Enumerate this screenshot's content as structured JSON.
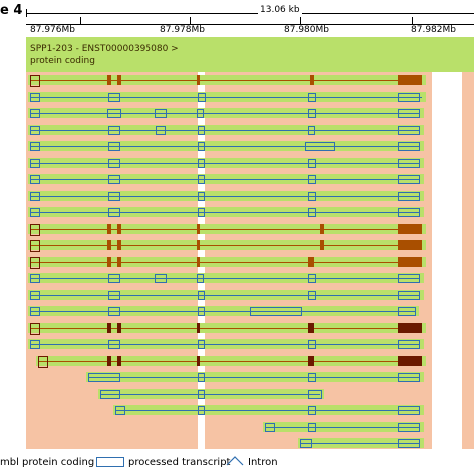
{
  "header": {
    "chromosome_label": "e 4",
    "span_label": "13.06 kb"
  },
  "coords": {
    "labels": [
      "87.976Mb",
      "87.978Mb",
      "87.980Mb",
      "87.982Mb"
    ]
  },
  "selected_transcript": {
    "name": "SPP1-203 - ENST00000395080 >",
    "biotype": "protein coding"
  },
  "legend": {
    "protein_coding_label": "mbl protein coding",
    "processed_transcript_label": "processed transcript",
    "intron_label": "Intron"
  },
  "colors": {
    "background_region": "#f6c3a4",
    "highlight_band": "#ffffff",
    "row_band": "#b9e06a",
    "protein_coding_exon": "#a94f00",
    "protein_coding_exon_dark": "#6b1a00",
    "processed_transcript": "#2f6fb0",
    "intron": "#2f6fb0"
  },
  "transcripts": {
    "count": 23
  }
}
